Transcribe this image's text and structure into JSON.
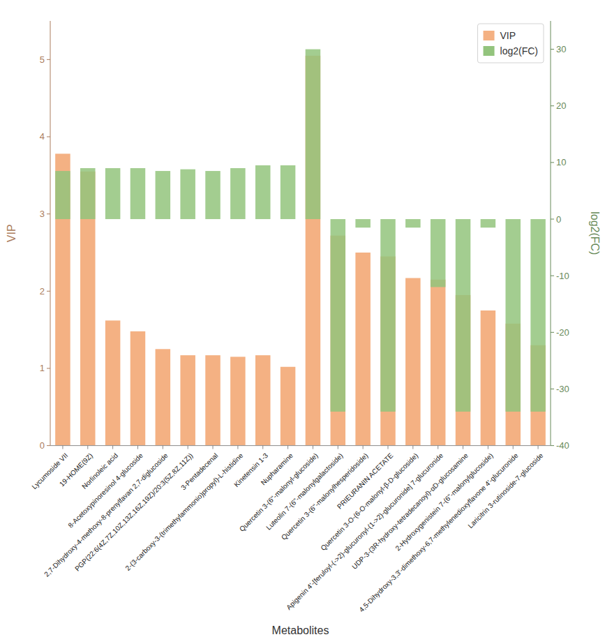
{
  "chart_data": {
    "type": "bar",
    "xlabel": "Metabolites",
    "ylabel": "VIP",
    "y2label": "log2(FC)",
    "categories": [
      "Lycumoside VII",
      "19-HOME(9Z)",
      "Norlinoleic acid",
      "8-Acetoxypinoresinol 4-glucoside",
      "2,7-Dihydroxy-4-methoxy-8-prenylfavan 2,7-diglucoside",
      "PGP(22:6(4Z,7Z,10Z,13Z,16Z,19Z)/20:3(5Z,8Z,11Z))",
      "3-Pentadecenal",
      "2-(3-carboxy-3-(trimethylammonio)propyl)-L-histidine",
      "Kinetensin 1-3",
      "Nupharamine",
      "Quercetin 3-(6\"-malonyl-glucoside)",
      "Luteolin 7-(6\"-malonylgalactoside)",
      "Quercetin 3-(6\"-malonylhesperidoside)",
      "PRIEURANIN ACETATE",
      "Quercetin 3-O-(6-O-malonyl-β-D-glucoside)",
      "Apigenin 4'-[feruloyl-(->2)-glucuronyl-(1->2)-glucuronide] 7-glucuronide",
      "UDP-3-(3R-hydroxy-tetradecanoyl)-αD-glucosamine",
      "2-Hydroxygenistein 7-(6\"-malonylglucoside)",
      "4,5-Dihydroxy-3,3'-dimethoxy-6,7-methylenedioxyflavone 4'-glucuronide",
      "Laricitrin 3-rutinoside-7-glucoside"
    ],
    "series": [
      {
        "name": "VIP",
        "color": "#F4B183",
        "values": [
          3.78,
          3.55,
          1.62,
          1.48,
          1.25,
          1.17,
          1.17,
          1.15,
          1.17,
          1.02,
          5.05,
          2.72,
          2.5,
          2.45,
          2.17,
          2.15,
          1.95,
          1.75,
          1.58,
          1.3
        ]
      },
      {
        "name": "log2(FC)",
        "color": "#93C47D",
        "axis": "y2",
        "values": [
          8.5,
          9.0,
          9.0,
          9.0,
          8.5,
          8.8,
          8.5,
          9.0,
          9.5,
          9.5,
          30.0,
          -34.0,
          -1.5,
          -34.0,
          -1.5,
          -12.0,
          -34.0,
          -1.5,
          -34.0,
          -34.0
        ]
      }
    ],
    "ylim": [
      0,
      5.5
    ],
    "yticks": [
      0,
      1,
      2,
      3,
      4,
      5
    ],
    "y2lim": [
      -40,
      35
    ],
    "y2ticks": [
      -40,
      -30,
      -20,
      -10,
      0,
      10,
      20,
      30
    ],
    "legend": "upper right",
    "grid": false
  }
}
